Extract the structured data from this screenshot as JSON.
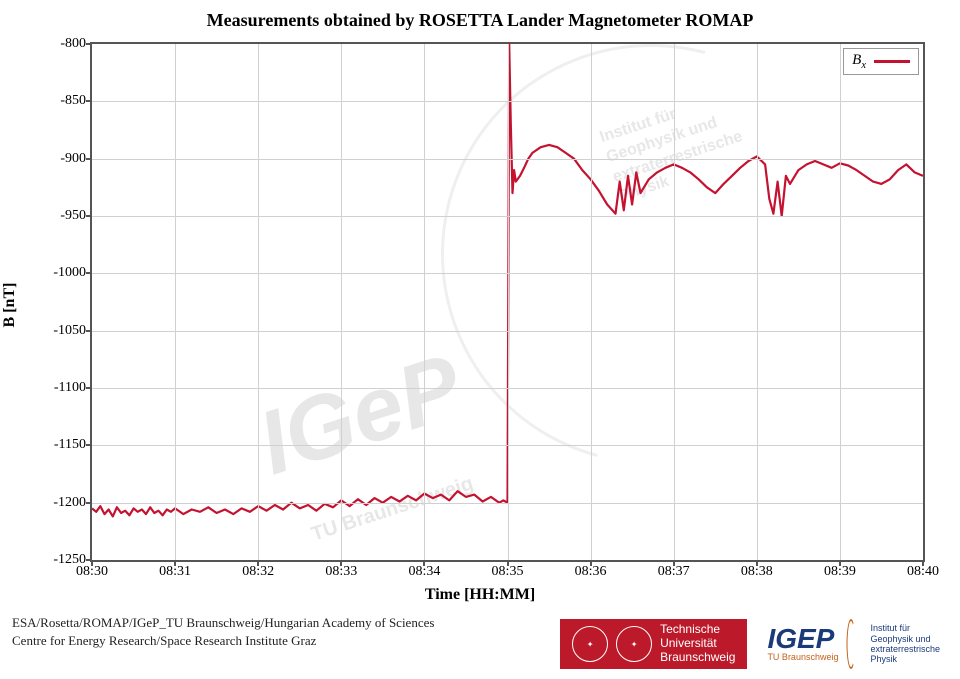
{
  "chart": {
    "type": "line",
    "title": "Measurements obtained by ROSETTA Lander Magnetometer ROMAP",
    "xlabel": "Time [HH:MM]",
    "ylabel": "B [nT]",
    "title_fontsize": 18,
    "label_fontsize": 16,
    "tick_fontsize": 14,
    "background_color": "#ffffff",
    "grid_color": "#d0d0d0",
    "border_color": "#555555",
    "line_color": "#c41230",
    "line_width": 2.2,
    "legend_label": "Bₓ",
    "legend_label_html": "B<sub>x</sub>",
    "legend_position": "upper-right",
    "ylim": [
      -1250,
      -800
    ],
    "ytick_step": 50,
    "yticks": [
      -800,
      -850,
      -900,
      -950,
      -1000,
      -1050,
      -1100,
      -1150,
      -1200,
      -1250
    ],
    "xlim_minutes": [
      510,
      520
    ],
    "xticks": [
      "08:30",
      "08:31",
      "08:32",
      "08:33",
      "08:34",
      "08:35",
      "08:36",
      "08:37",
      "08:38",
      "08:39",
      "08:40"
    ],
    "xtick_minutes": [
      510,
      511,
      512,
      513,
      514,
      515,
      516,
      517,
      518,
      519,
      520
    ],
    "series": [
      {
        "name": "Bx",
        "color": "#c41230",
        "t": [
          510.0,
          510.05,
          510.1,
          510.15,
          510.2,
          510.25,
          510.3,
          510.35,
          510.4,
          510.45,
          510.5,
          510.55,
          510.6,
          510.65,
          510.7,
          510.75,
          510.8,
          510.85,
          510.9,
          510.95,
          511.0,
          511.1,
          511.2,
          511.3,
          511.4,
          511.5,
          511.6,
          511.7,
          511.8,
          511.9,
          512.0,
          512.1,
          512.2,
          512.3,
          512.4,
          512.5,
          512.6,
          512.7,
          512.8,
          512.9,
          513.0,
          513.1,
          513.2,
          513.3,
          513.4,
          513.5,
          513.6,
          513.7,
          513.8,
          513.9,
          514.0,
          514.1,
          514.2,
          514.3,
          514.4,
          514.5,
          514.6,
          514.7,
          514.8,
          514.9,
          514.95,
          515.0,
          515.02,
          515.04,
          515.06,
          515.08,
          515.1,
          515.15,
          515.2,
          515.25,
          515.3,
          515.4,
          515.5,
          515.6,
          515.7,
          515.8,
          515.9,
          516.0,
          516.1,
          516.2,
          516.3,
          516.35,
          516.4,
          516.45,
          516.5,
          516.55,
          516.6,
          516.7,
          516.8,
          516.9,
          517.0,
          517.1,
          517.2,
          517.3,
          517.4,
          517.5,
          517.6,
          517.7,
          517.8,
          517.9,
          518.0,
          518.1,
          518.15,
          518.2,
          518.25,
          518.3,
          518.35,
          518.4,
          518.5,
          518.6,
          518.7,
          518.8,
          518.9,
          519.0,
          519.1,
          519.2,
          519.3,
          519.4,
          519.5,
          519.6,
          519.7,
          519.8,
          519.9,
          520.0
        ],
        "y": [
          -1205,
          -1208,
          -1203,
          -1210,
          -1206,
          -1212,
          -1204,
          -1209,
          -1207,
          -1211,
          -1205,
          -1208,
          -1206,
          -1210,
          -1204,
          -1209,
          -1207,
          -1211,
          -1206,
          -1208,
          -1205,
          -1210,
          -1206,
          -1208,
          -1204,
          -1209,
          -1206,
          -1210,
          -1205,
          -1208,
          -1203,
          -1207,
          -1202,
          -1206,
          -1200,
          -1205,
          -1202,
          -1207,
          -1201,
          -1204,
          -1198,
          -1203,
          -1197,
          -1202,
          -1196,
          -1200,
          -1195,
          -1199,
          -1194,
          -1198,
          -1192,
          -1196,
          -1193,
          -1198,
          -1190,
          -1195,
          -1193,
          -1199,
          -1195,
          -1200,
          -1198,
          -1200,
          -800,
          -870,
          -930,
          -910,
          -920,
          -915,
          -908,
          -900,
          -895,
          -890,
          -888,
          -890,
          -895,
          -900,
          -910,
          -918,
          -928,
          -940,
          -948,
          -920,
          -945,
          -915,
          -940,
          -912,
          -930,
          -918,
          -912,
          -908,
          -905,
          -908,
          -912,
          -918,
          -925,
          -930,
          -922,
          -915,
          -908,
          -902,
          -898,
          -905,
          -935,
          -948,
          -920,
          -950,
          -915,
          -922,
          -910,
          -905,
          -902,
          -905,
          -908,
          -904,
          -906,
          -910,
          -915,
          -920,
          -922,
          -918,
          -910,
          -905,
          -912,
          -915
        ],
        "noise_amplitude": 4
      }
    ],
    "watermarks": {
      "igep": "IGeP",
      "tub": "TU Braunschweig",
      "institute": "Institut für\nGeophysik und\nextraterrestrische\nPhysik"
    }
  },
  "footer": {
    "line1": "ESA/Rosetta/ROMAP/IGeP_TU Braunschweig/Hungarian Academy of Sciences",
    "line2": "Centre for Energy Research/Space Research Institute Graz"
  },
  "logos": {
    "tu": {
      "bg": "#bc1a2a",
      "line1": "Technische",
      "line2": "Universität",
      "line3": "Braunschweig"
    },
    "igep": {
      "mark": "IGEP",
      "sub": "TU Braunschweig",
      "arc_color": "#c4621a",
      "text_color": "#1a3a7a",
      "desc1": "Institut für",
      "desc2": "Geophysik und",
      "desc3": "extraterrestrische",
      "desc4": "Physik"
    }
  }
}
